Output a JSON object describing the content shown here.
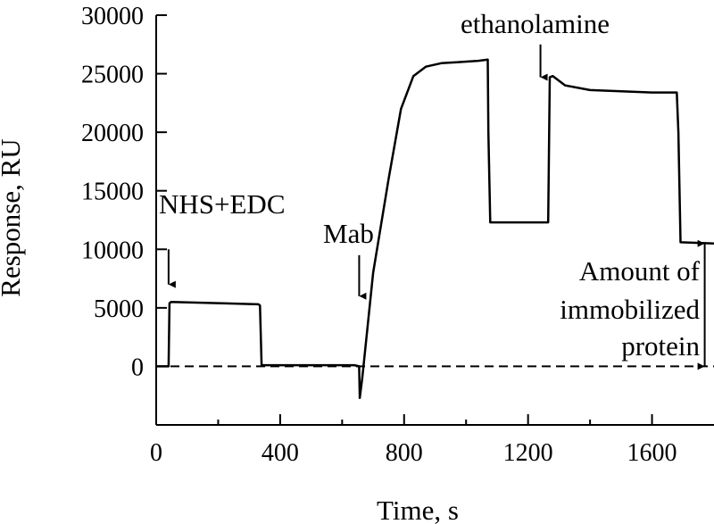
{
  "chart_data": {
    "type": "line",
    "title": "",
    "xlabel": "Time, s",
    "ylabel": "Response, RU",
    "xlim": [
      0,
      1800
    ],
    "ylim": [
      -5000,
      30000
    ],
    "x_ticks": [
      0,
      400,
      800,
      1200,
      1600
    ],
    "y_ticks": [
      0,
      5000,
      10000,
      15000,
      20000,
      25000,
      30000
    ],
    "grid": false,
    "legend": "none",
    "baseline": {
      "y": 0,
      "style": "dashed"
    },
    "series": [
      {
        "color": "#000000",
        "x": [
          0,
          40,
          43,
          48,
          200,
          330,
          335,
          340,
          470,
          640,
          655,
          657,
          665,
          700,
          750,
          790,
          830,
          870,
          920,
          980,
          1040,
          1070,
          1072,
          1078,
          1240,
          1265,
          1270,
          1280,
          1320,
          1400,
          1500,
          1600,
          1680,
          1685,
          1692,
          1800
        ],
        "y": [
          0,
          0,
          5400,
          5500,
          5400,
          5300,
          5200,
          100,
          100,
          100,
          0,
          -2700,
          -1000,
          8000,
          16000,
          22000,
          24800,
          25600,
          25900,
          26000,
          26100,
          26200,
          20000,
          12300,
          12300,
          12300,
          24700,
          24800,
          24000,
          23600,
          23500,
          23400,
          23400,
          20000,
          10600,
          10500
        ]
      }
    ],
    "annotations": [
      {
        "text": "NHS+EDC",
        "arrow_x": 40,
        "arrow_y_from": 10000,
        "arrow_y_to": 7000
      },
      {
        "text": "Mab",
        "arrow_x": 655,
        "arrow_y_from": 9500,
        "arrow_y_to": 6000
      },
      {
        "text": "ethanolamine",
        "arrow_x": 1240,
        "arrow_y_from": 27500,
        "arrow_y_to": 24700
      },
      {
        "text": "Amount of",
        "text2": "immobilized",
        "text3": "protein",
        "arrow_x": 1770,
        "arrow_y_from": 0,
        "arrow_y_to": 10500
      }
    ]
  }
}
